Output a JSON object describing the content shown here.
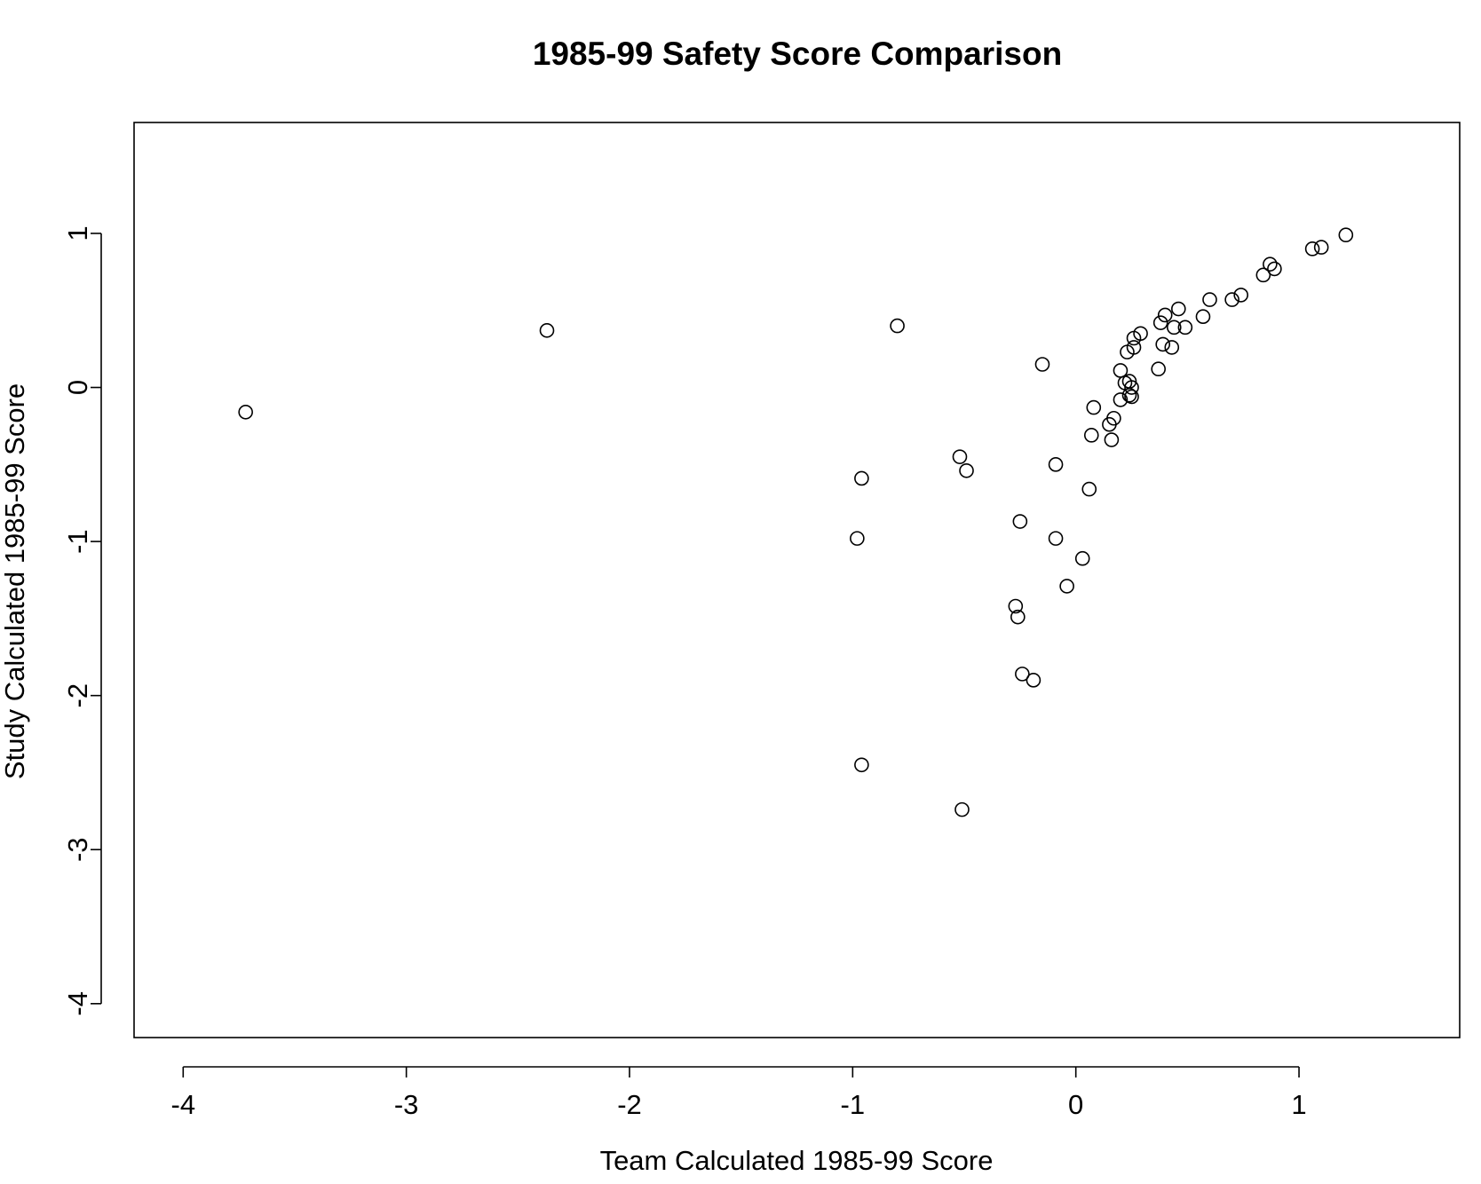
{
  "chart_data": {
    "type": "scatter",
    "title": "1985-99 Safety Score Comparison",
    "xlabel": "Team Calculated 1985-99 Score",
    "ylabel": "Study Calculated 1985-99 Score",
    "xlim": [
      -4.22,
      1.72
    ],
    "ylim": [
      -4.22,
      1.72
    ],
    "x_ticks": [
      -4,
      -3,
      -2,
      -1,
      0,
      1
    ],
    "y_ticks": [
      -4,
      -3,
      -2,
      -1,
      0,
      1
    ],
    "x_tick_labels": [
      "-4",
      "-3",
      "-2",
      "-1",
      "0",
      "1"
    ],
    "y_tick_labels": [
      "-4",
      "-3",
      "-2",
      "-1",
      "0",
      "1"
    ],
    "grid": false,
    "marker": "open-circle",
    "points": [
      {
        "x": -3.72,
        "y": -0.16
      },
      {
        "x": -2.37,
        "y": 0.37
      },
      {
        "x": -0.8,
        "y": 0.4
      },
      {
        "x": -0.96,
        "y": -0.59
      },
      {
        "x": -0.98,
        "y": -0.98
      },
      {
        "x": -0.96,
        "y": -2.45
      },
      {
        "x": -0.52,
        "y": -0.45
      },
      {
        "x": -0.49,
        "y": -0.54
      },
      {
        "x": -0.51,
        "y": -2.74
      },
      {
        "x": -0.15,
        "y": 0.15
      },
      {
        "x": -0.09,
        "y": -0.5
      },
      {
        "x": -0.25,
        "y": -0.87
      },
      {
        "x": -0.09,
        "y": -0.98
      },
      {
        "x": 0.03,
        "y": -1.11
      },
      {
        "x": -0.04,
        "y": -1.29
      },
      {
        "x": -0.27,
        "y": -1.42
      },
      {
        "x": -0.26,
        "y": -1.49
      },
      {
        "x": -0.24,
        "y": -1.86
      },
      {
        "x": -0.19,
        "y": -1.9
      },
      {
        "x": 0.06,
        "y": -0.66
      },
      {
        "x": 0.07,
        "y": -0.31
      },
      {
        "x": 0.08,
        "y": -0.13
      },
      {
        "x": 0.15,
        "y": -0.24
      },
      {
        "x": 0.16,
        "y": -0.34
      },
      {
        "x": 0.17,
        "y": -0.2
      },
      {
        "x": 0.2,
        "y": 0.11
      },
      {
        "x": 0.2,
        "y": -0.08
      },
      {
        "x": 0.22,
        "y": 0.03
      },
      {
        "x": 0.23,
        "y": 0.23
      },
      {
        "x": 0.24,
        "y": 0.04
      },
      {
        "x": 0.24,
        "y": -0.05
      },
      {
        "x": 0.25,
        "y": 0.0
      },
      {
        "x": 0.25,
        "y": -0.06
      },
      {
        "x": 0.26,
        "y": 0.26
      },
      {
        "x": 0.26,
        "y": 0.32
      },
      {
        "x": 0.29,
        "y": 0.35
      },
      {
        "x": 0.37,
        "y": 0.12
      },
      {
        "x": 0.38,
        "y": 0.42
      },
      {
        "x": 0.39,
        "y": 0.28
      },
      {
        "x": 0.4,
        "y": 0.47
      },
      {
        "x": 0.43,
        "y": 0.26
      },
      {
        "x": 0.44,
        "y": 0.39
      },
      {
        "x": 0.46,
        "y": 0.51
      },
      {
        "x": 0.49,
        "y": 0.39
      },
      {
        "x": 0.57,
        "y": 0.46
      },
      {
        "x": 0.6,
        "y": 0.57
      },
      {
        "x": 0.7,
        "y": 0.57
      },
      {
        "x": 0.74,
        "y": 0.6
      },
      {
        "x": 0.84,
        "y": 0.73
      },
      {
        "x": 0.87,
        "y": 0.8
      },
      {
        "x": 0.89,
        "y": 0.77
      },
      {
        "x": 1.06,
        "y": 0.9
      },
      {
        "x": 1.1,
        "y": 0.91
      },
      {
        "x": 1.21,
        "y": 0.99
      }
    ]
  }
}
